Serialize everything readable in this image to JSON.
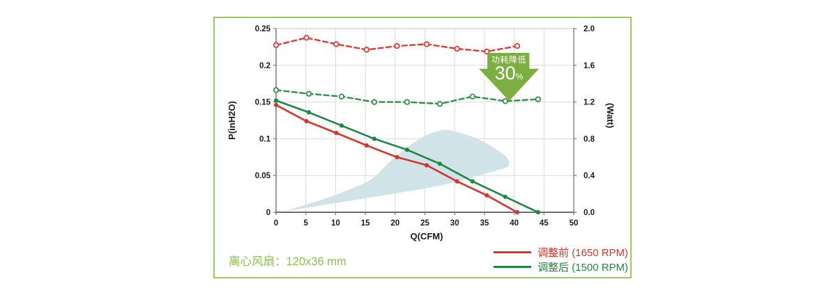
{
  "card": {
    "border_color": "#9cc95f"
  },
  "footer": {
    "label": "离心风扇：120x36 mm",
    "color": "#8cc153"
  },
  "badge": {
    "line1": "功耗降低",
    "value": "30",
    "unit": "%",
    "color": "#7dae41"
  },
  "legend": [
    {
      "label": "调整前 (1650 RPM)",
      "color": "#d7342c"
    },
    {
      "label": "调整后 (1500 RPM)",
      "color": "#1e8742"
    }
  ],
  "chart_data": {
    "type": "line",
    "xlabel": "Q(CFM)",
    "ylabel_left": "P(inH2O)",
    "ylabel_right": "(Watt)",
    "x_range": [
      0,
      50
    ],
    "y_left_range": [
      0,
      0.25
    ],
    "y_right_range": [
      0,
      2.0
    ],
    "x_tick_values": [
      0,
      5,
      10,
      15,
      20,
      25,
      30,
      35,
      40,
      45,
      50
    ],
    "x_tick_labels": [
      "0",
      "5",
      "10",
      "15",
      "20",
      "25",
      "30",
      "35",
      "40",
      "45",
      "50"
    ],
    "y_left_tick_values": [
      0,
      0.05,
      0.1,
      0.15,
      0.2,
      0.25
    ],
    "y_left_tick_labels": [
      "0",
      "0.05",
      "0.1",
      "0.15",
      "0.2",
      "0.25"
    ],
    "y_right_tick_values": [
      0,
      0.4,
      0.8,
      1.2,
      1.6,
      2.0
    ],
    "y_right_tick_labels": [
      "0.0",
      "0.4",
      "0.8",
      "1.2",
      "1.6",
      "2.0"
    ],
    "grid": true,
    "colors": {
      "grid": "#d9d9d9",
      "frame": "#808080",
      "envelope": "#cfe3e9"
    },
    "series": [
      {
        "name": "调整前 (1650 RPM) 功耗",
        "axis": "right",
        "style": "dashed",
        "marker": "open-circle",
        "color": "#e23a30",
        "points": [
          [
            0,
            1.82
          ],
          [
            5.1,
            1.9
          ],
          [
            10.1,
            1.83
          ],
          [
            15.2,
            1.77
          ],
          [
            20.3,
            1.81
          ],
          [
            25.3,
            1.83
          ],
          [
            30.4,
            1.78
          ],
          [
            35.4,
            1.75
          ],
          [
            40.5,
            1.81
          ]
        ]
      },
      {
        "name": "调整后 (1500 RPM) 功耗",
        "axis": "right",
        "style": "dashed",
        "marker": "open-circle",
        "color": "#2e9148",
        "points": [
          [
            0,
            1.33
          ],
          [
            5.5,
            1.29
          ],
          [
            11,
            1.26
          ],
          [
            16.5,
            1.2
          ],
          [
            22,
            1.2
          ],
          [
            27.5,
            1.18
          ],
          [
            33,
            1.26
          ],
          [
            38.5,
            1.21
          ],
          [
            44,
            1.23
          ]
        ]
      },
      {
        "name": "调整前 (1650 RPM) 风压",
        "axis": "left",
        "style": "solid",
        "marker": "dot",
        "color": "#d7342c",
        "points": [
          [
            0,
            0.146
          ],
          [
            5.1,
            0.124
          ],
          [
            10.1,
            0.108
          ],
          [
            15.2,
            0.091
          ],
          [
            20.3,
            0.075
          ],
          [
            25.3,
            0.064
          ],
          [
            30.4,
            0.042
          ],
          [
            35.4,
            0.023
          ],
          [
            40.5,
            0
          ]
        ]
      },
      {
        "name": "调整后 (1500 RPM) 风压",
        "axis": "left",
        "style": "solid",
        "marker": "dot",
        "color": "#1e8742",
        "points": [
          [
            0,
            0.152
          ],
          [
            5.5,
            0.136
          ],
          [
            11,
            0.118
          ],
          [
            16.5,
            0.1
          ],
          [
            22,
            0.085
          ],
          [
            27.5,
            0.066
          ],
          [
            33,
            0.042
          ],
          [
            38.5,
            0.021
          ],
          [
            44,
            0
          ]
        ]
      }
    ],
    "envelope": {
      "name": "operating-region",
      "points": [
        [
          1.5,
          0.001
        ],
        [
          8,
          0.01
        ],
        [
          15,
          0.019
        ],
        [
          21,
          0.027
        ],
        [
          26,
          0.034
        ],
        [
          30,
          0.041
        ],
        [
          34,
          0.05
        ],
        [
          37,
          0.057
        ],
        [
          39,
          0.063
        ],
        [
          38.7,
          0.075
        ],
        [
          36.5,
          0.088
        ],
        [
          33.5,
          0.101
        ],
        [
          30,
          0.11
        ],
        [
          28,
          0.112
        ],
        [
          25,
          0.104
        ],
        [
          22,
          0.088
        ],
        [
          19,
          0.068
        ],
        [
          16,
          0.045
        ],
        [
          12,
          0.03
        ],
        [
          8,
          0.018
        ],
        [
          4,
          0.008
        ],
        [
          1.8,
          0.002
        ]
      ]
    }
  }
}
